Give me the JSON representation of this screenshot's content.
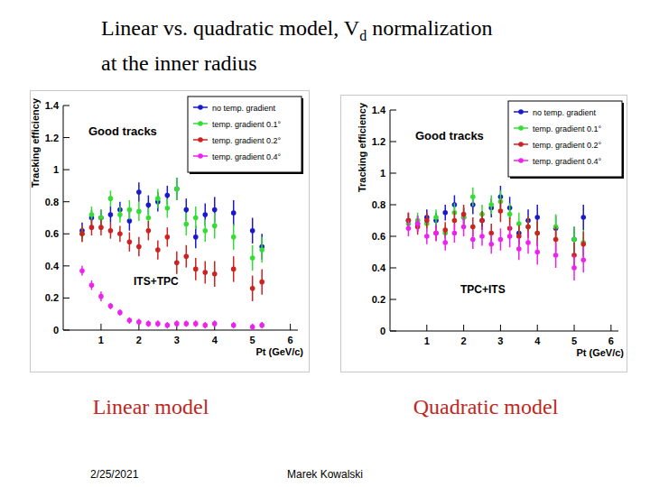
{
  "slide": {
    "title_runs": [
      {
        "text": "Linear vs. quadratic model, V"
      },
      {
        "text": "d",
        "sub": true
      },
      {
        "text": " normalization"
      },
      {
        "text": "at the inner radius",
        "break_before": true
      }
    ],
    "date": "2/25/2021",
    "author": "Marek Kowalski"
  },
  "chart_data": [
    {
      "type": "scatter",
      "title": "Good tracks",
      "annotations": [
        "ITS+TPC"
      ],
      "caption": "Linear model",
      "x_label": "Pt (GeV/c)",
      "y_label": "Tracking efficiency",
      "x": [
        0.5,
        0.75,
        1.0,
        1.25,
        1.5,
        1.75,
        2.0,
        2.25,
        2.5,
        2.75,
        3.0,
        3.25,
        3.5,
        3.75,
        4.0,
        4.5,
        5.0,
        5.25
      ],
      "xlim": [
        0,
        6.2
      ],
      "ylim": [
        0,
        1.4
      ],
      "xticks": [
        1,
        2,
        3,
        4,
        5,
        6
      ],
      "yticks": [
        0,
        0.2,
        0.4,
        0.6,
        0.8,
        1,
        1.2,
        1.4
      ],
      "grid": false,
      "legend": "top-right",
      "marker": "circle",
      "series": [
        {
          "name": "no temp. gradient",
          "color": "#1a1acc",
          "values": [
            0.62,
            0.7,
            0.7,
            0.72,
            0.75,
            0.68,
            0.86,
            0.78,
            0.8,
            0.84,
            0.88,
            0.75,
            0.58,
            0.72,
            0.75,
            0.73,
            0.62,
            0.52
          ],
          "errors": [
            0.05,
            0.05,
            0.05,
            0.05,
            0.05,
            0.06,
            0.06,
            0.06,
            0.06,
            0.06,
            0.07,
            0.07,
            0.07,
            0.07,
            0.08,
            0.08,
            0.08,
            0.08
          ]
        },
        {
          "name": "temp. gradient 0.1°",
          "color": "#33dd33",
          "values": [
            0.6,
            0.72,
            0.7,
            0.82,
            0.72,
            0.75,
            0.74,
            0.7,
            0.82,
            0.76,
            0.88,
            0.66,
            0.7,
            0.62,
            0.65,
            0.58,
            0.45,
            0.5
          ],
          "errors": [
            0.05,
            0.05,
            0.05,
            0.05,
            0.05,
            0.06,
            0.06,
            0.06,
            0.06,
            0.06,
            0.07,
            0.07,
            0.07,
            0.07,
            0.08,
            0.08,
            0.08,
            0.08
          ]
        },
        {
          "name": "temp. gradient 0.2°",
          "color": "#cc2222",
          "values": [
            0.6,
            0.64,
            0.64,
            0.62,
            0.6,
            0.55,
            0.52,
            0.62,
            0.5,
            0.58,
            0.42,
            0.46,
            0.38,
            0.36,
            0.35,
            0.38,
            0.26,
            0.3
          ],
          "errors": [
            0.05,
            0.05,
            0.05,
            0.05,
            0.05,
            0.06,
            0.06,
            0.06,
            0.06,
            0.06,
            0.07,
            0.07,
            0.07,
            0.07,
            0.08,
            0.08,
            0.08,
            0.08
          ]
        },
        {
          "name": "temp. gradient 0.4°",
          "color": "#ee22ee",
          "values": [
            0.37,
            0.28,
            0.21,
            0.15,
            0.11,
            0.06,
            0.05,
            0.04,
            0.04,
            0.03,
            0.04,
            0.04,
            0.04,
            0.03,
            0.04,
            0.03,
            0.02,
            0.03
          ],
          "errors": [
            0.03,
            0.03,
            0.03,
            0.02,
            0.02,
            0.02,
            0.02,
            0.02,
            0.02,
            0.02,
            0.02,
            0.02,
            0.02,
            0.02,
            0.02,
            0.02,
            0.02,
            0.02
          ]
        }
      ]
    },
    {
      "type": "scatter",
      "title": "Good tracks",
      "annotations": [
        "TPC+ITS"
      ],
      "caption": "Quadratic model",
      "x_label": "Pt (GeV/c)",
      "y_label": "Tracking efficiency",
      "x": [
        0.5,
        0.75,
        1.0,
        1.25,
        1.5,
        1.75,
        2.0,
        2.25,
        2.5,
        2.75,
        3.0,
        3.25,
        3.5,
        3.75,
        4.0,
        4.5,
        5.0,
        5.25
      ],
      "xlim": [
        0,
        6.2
      ],
      "ylim": [
        0,
        1.4
      ],
      "xticks": [
        1,
        2,
        3,
        4,
        5,
        6
      ],
      "yticks": [
        0,
        0.2,
        0.4,
        0.6,
        0.8,
        1,
        1.2,
        1.4
      ],
      "grid": false,
      "legend": "top-right",
      "marker": "circle",
      "series": [
        {
          "name": "no temp. gradient",
          "color": "#1a1acc",
          "values": [
            0.7,
            0.68,
            0.72,
            0.7,
            0.75,
            0.8,
            0.72,
            0.8,
            0.7,
            0.78,
            0.85,
            0.78,
            0.62,
            0.7,
            0.72,
            0.65,
            0.58,
            0.72
          ],
          "errors": [
            0.05,
            0.05,
            0.05,
            0.05,
            0.05,
            0.06,
            0.06,
            0.06,
            0.06,
            0.06,
            0.07,
            0.07,
            0.07,
            0.07,
            0.08,
            0.08,
            0.08,
            0.08
          ]
        },
        {
          "name": "temp. gradient 0.1°",
          "color": "#33dd33",
          "values": [
            0.68,
            0.7,
            0.68,
            0.72,
            0.62,
            0.75,
            0.72,
            0.85,
            0.74,
            0.8,
            0.82,
            0.74,
            0.68,
            0.66,
            0.62,
            0.66,
            0.58,
            0.56
          ],
          "errors": [
            0.05,
            0.05,
            0.05,
            0.05,
            0.05,
            0.06,
            0.06,
            0.06,
            0.06,
            0.06,
            0.07,
            0.07,
            0.07,
            0.07,
            0.08,
            0.08,
            0.08,
            0.08
          ]
        },
        {
          "name": "temp. gradient 0.2°",
          "color": "#cc2222",
          "values": [
            0.7,
            0.66,
            0.7,
            0.62,
            0.64,
            0.7,
            0.74,
            0.66,
            0.7,
            0.62,
            0.76,
            0.65,
            0.6,
            0.66,
            0.62,
            0.58,
            0.48,
            0.55
          ],
          "errors": [
            0.05,
            0.05,
            0.05,
            0.05,
            0.05,
            0.06,
            0.06,
            0.06,
            0.06,
            0.06,
            0.07,
            0.07,
            0.07,
            0.07,
            0.08,
            0.08,
            0.08,
            0.08
          ]
        },
        {
          "name": "temp. gradient 0.4°",
          "color": "#ee22ee",
          "values": [
            0.65,
            0.68,
            0.6,
            0.62,
            0.56,
            0.62,
            0.66,
            0.58,
            0.6,
            0.55,
            0.58,
            0.6,
            0.52,
            0.56,
            0.5,
            0.48,
            0.4,
            0.45
          ],
          "errors": [
            0.05,
            0.05,
            0.05,
            0.05,
            0.05,
            0.06,
            0.06,
            0.06,
            0.06,
            0.06,
            0.07,
            0.07,
            0.07,
            0.07,
            0.08,
            0.08,
            0.08,
            0.08
          ]
        }
      ]
    }
  ]
}
